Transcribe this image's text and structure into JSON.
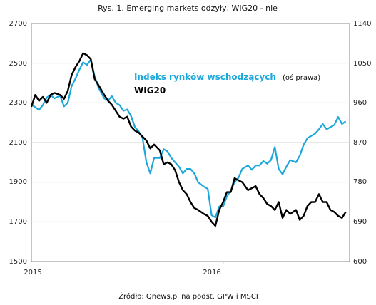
{
  "chart_data": {
    "type": "line",
    "title": "Rys. 1. Emerging markets odżyły, WIG20 - nie",
    "source": "Źródło: Qnews.pl na podst. GPW i MSCI",
    "x_ticks": [
      "2015",
      "2016"
    ],
    "y_left": {
      "ticks": [
        "2700",
        "2500",
        "2300",
        "2100",
        "1900",
        "1700",
        "1500"
      ],
      "range": [
        1500,
        2700
      ]
    },
    "y_right": {
      "ticks": [
        "1140",
        "1050",
        "960",
        "870",
        "780",
        "690",
        "600"
      ],
      "range": [
        600,
        1140
      ]
    },
    "grid": true,
    "legend": {
      "blue_name": "Indeks rynków wschodzących",
      "blue_note": "(oś prawa)",
      "black_name": "WIG20"
    },
    "colors": {
      "blue": "#1aa7dc",
      "black": "#000000",
      "grid": "#d0d0d0",
      "axis": "#888888"
    },
    "x_range": [
      2015.0,
      2016.66
    ],
    "series": [
      {
        "name": "Indeks rynków wschodzących",
        "axis": "right",
        "color": "#1aa7dc",
        "x": [
          2015.0,
          2015.02,
          2015.04,
          2015.06,
          2015.08,
          2015.1,
          2015.12,
          2015.15,
          2015.17,
          2015.19,
          2015.21,
          2015.23,
          2015.25,
          2015.27,
          2015.29,
          2015.31,
          2015.33,
          2015.35,
          2015.38,
          2015.4,
          2015.42,
          2015.44,
          2015.46,
          2015.48,
          2015.5,
          2015.52,
          2015.54,
          2015.56,
          2015.58,
          2015.6,
          2015.62,
          2015.64,
          2015.67,
          2015.69,
          2015.71,
          2015.73,
          2015.75,
          2015.77,
          2015.79,
          2015.81,
          2015.83,
          2015.85,
          2015.87,
          2015.9,
          2015.92,
          2015.94,
          2015.96,
          2015.98,
          2016.0,
          2016.02,
          2016.04,
          2016.06,
          2016.08,
          2016.1,
          2016.13,
          2016.15,
          2016.17,
          2016.19,
          2016.21,
          2016.23,
          2016.25,
          2016.27,
          2016.29,
          2016.31,
          2016.33,
          2016.35,
          2016.38,
          2016.4,
          2016.42,
          2016.44,
          2016.46,
          2016.48,
          2016.5,
          2016.52,
          2016.54,
          2016.56,
          2016.58,
          2016.6,
          2016.62,
          2016.64
        ],
        "values": [
          957,
          950,
          944,
          955,
          972,
          978,
          970,
          976,
          952,
          960,
          998,
          1015,
          1035,
          1052,
          1046,
          1058,
          1020,
          995,
          970,
          965,
          975,
          960,
          955,
          942,
          945,
          930,
          905,
          895,
          880,
          825,
          800,
          835,
          835,
          855,
          850,
          835,
          825,
          815,
          800,
          810,
          810,
          800,
          780,
          770,
          765,
          705,
          700,
          725,
          725,
          748,
          760,
          780,
          790,
          810,
          818,
          808,
          818,
          818,
          828,
          822,
          830,
          860,
          810,
          798,
          815,
          830,
          825,
          840,
          865,
          880,
          885,
          890,
          900,
          912,
          900,
          905,
          910,
          928,
          912,
          918
        ]
      },
      {
        "name": "WIG20",
        "axis": "left",
        "color": "#000000",
        "x": [
          2015.0,
          2015.02,
          2015.04,
          2015.06,
          2015.08,
          2015.1,
          2015.12,
          2015.15,
          2015.17,
          2015.19,
          2015.21,
          2015.23,
          2015.25,
          2015.27,
          2015.29,
          2015.31,
          2015.33,
          2015.35,
          2015.38,
          2015.4,
          2015.42,
          2015.44,
          2015.46,
          2015.48,
          2015.5,
          2015.52,
          2015.54,
          2015.56,
          2015.58,
          2015.6,
          2015.62,
          2015.64,
          2015.67,
          2015.69,
          2015.71,
          2015.73,
          2015.75,
          2015.77,
          2015.79,
          2015.81,
          2015.83,
          2015.85,
          2015.87,
          2015.9,
          2015.92,
          2015.94,
          2015.96,
          2015.98,
          2016.0,
          2016.02,
          2016.04,
          2016.06,
          2016.08,
          2016.1,
          2016.13,
          2016.15,
          2016.17,
          2016.19,
          2016.21,
          2016.23,
          2016.25,
          2016.27,
          2016.29,
          2016.31,
          2016.33,
          2016.35,
          2016.38,
          2016.4,
          2016.42,
          2016.44,
          2016.46,
          2016.48,
          2016.5,
          2016.52,
          2016.54,
          2016.56,
          2016.58,
          2016.6,
          2016.62,
          2016.64
        ],
        "values": [
          2280,
          2340,
          2310,
          2330,
          2300,
          2340,
          2350,
          2340,
          2320,
          2360,
          2440,
          2480,
          2510,
          2550,
          2540,
          2520,
          2420,
          2390,
          2340,
          2310,
          2290,
          2260,
          2230,
          2220,
          2230,
          2180,
          2160,
          2150,
          2130,
          2110,
          2070,
          2090,
          2060,
          1990,
          2000,
          1990,
          1960,
          1900,
          1860,
          1840,
          1800,
          1770,
          1760,
          1740,
          1730,
          1700,
          1680,
          1760,
          1800,
          1850,
          1850,
          1920,
          1910,
          1900,
          1860,
          1870,
          1880,
          1840,
          1820,
          1790,
          1780,
          1760,
          1800,
          1720,
          1760,
          1740,
          1760,
          1710,
          1730,
          1780,
          1800,
          1800,
          1840,
          1800,
          1800,
          1760,
          1750,
          1730,
          1720,
          1750
        ]
      }
    ]
  }
}
